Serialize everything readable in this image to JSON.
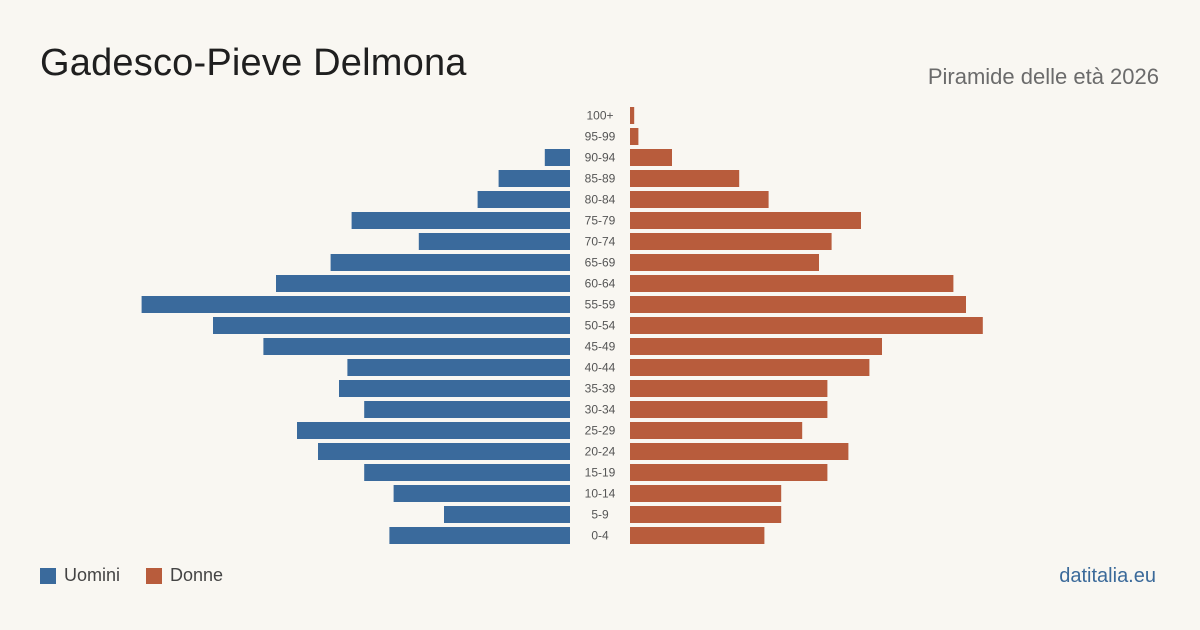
{
  "title": "Gadesco-Pieve Delmona",
  "subtitle": "Piramide delle età 2026",
  "source": "datitalia.eu",
  "legend": {
    "men": "Uomini",
    "women": "Donne"
  },
  "colors": {
    "men": "#3a6a9c",
    "women": "#b85c3c",
    "background": "#f9f7f2"
  },
  "chart_data": {
    "type": "bar",
    "orientation": "horizontal-diverging",
    "categories": [
      "100+",
      "95-99",
      "90-94",
      "85-89",
      "80-84",
      "75-79",
      "70-74",
      "65-69",
      "60-64",
      "55-59",
      "50-54",
      "45-49",
      "40-44",
      "35-39",
      "30-34",
      "25-29",
      "20-24",
      "15-19",
      "10-14",
      "5-9",
      "0-4"
    ],
    "series": [
      {
        "name": "Uomini",
        "values": [
          0,
          0,
          6,
          17,
          22,
          52,
          36,
          57,
          70,
          102,
          85,
          73,
          53,
          55,
          49,
          65,
          60,
          49,
          42,
          30,
          43
        ]
      },
      {
        "name": "Donne",
        "values": [
          1,
          2,
          10,
          26,
          33,
          55,
          48,
          45,
          77,
          80,
          84,
          60,
          57,
          47,
          47,
          41,
          52,
          47,
          36,
          36,
          32
        ]
      }
    ]
  }
}
